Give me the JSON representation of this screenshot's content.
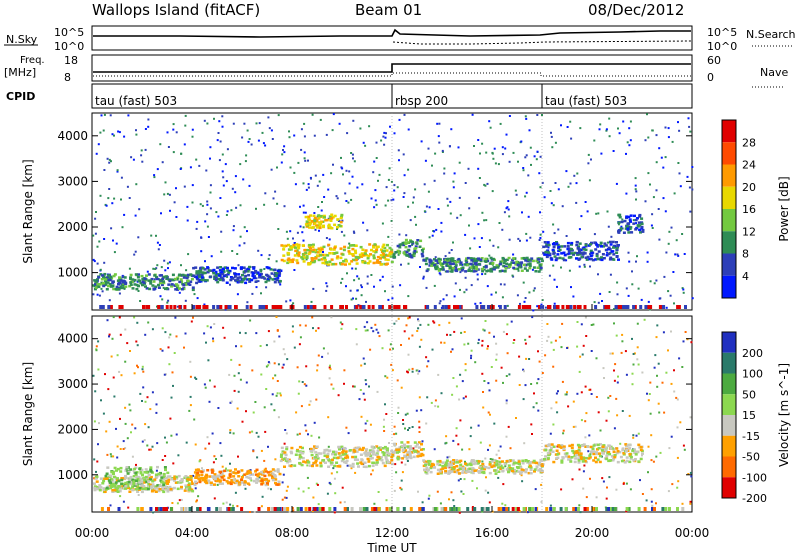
{
  "header": {
    "station": "Wallops Island (fitACF)",
    "beam": "Beam 01",
    "date": "08/Dec/2012"
  },
  "panels": {
    "nsky": {
      "label": "N.Sky",
      "right_label": "N.Search",
      "tick_top": "10^5",
      "tick_bottom": "10^0"
    },
    "freq": {
      "label_line1": "Freq.",
      "label_line2": "[MHz]",
      "tick_top": "18",
      "tick_bottom": "8",
      "right_label": "Nave",
      "right_tick_top": "60",
      "right_tick_bottom": "0"
    },
    "cpid": {
      "label": "CPID",
      "segments": [
        {
          "start": 0,
          "end": 12,
          "label": "tau (fast) 503"
        },
        {
          "start": 12,
          "end": 18,
          "label": "rbsp 200"
        },
        {
          "start": 18,
          "end": 24,
          "label": "tau (fast) 503"
        }
      ]
    }
  },
  "chart_data": [
    {
      "type": "heatmap",
      "name": "Power",
      "ylabel": "Slant Range [km]",
      "yticks": [
        1000,
        2000,
        3000,
        4000
      ],
      "ylim": [
        180,
        4500
      ],
      "xlim": [
        0,
        24
      ],
      "colorbar": {
        "label": "Power [dB]",
        "ticks": [
          "28",
          "24",
          "20",
          "16",
          "12",
          "8",
          "4"
        ],
        "colors": [
          "#e00000",
          "#ff4a00",
          "#ff9a00",
          "#e8d800",
          "#73c940",
          "#2e8c55",
          "#2d3fb8",
          "#0018ff"
        ]
      },
      "bands": [
        {
          "t0": 0.0,
          "t1": 4.0,
          "r0": 650,
          "r1": 1000,
          "level": 5
        },
        {
          "t0": 4.0,
          "t1": 7.5,
          "r0": 800,
          "r1": 1150,
          "level": 6
        },
        {
          "t0": 7.5,
          "t1": 12.0,
          "r0": 1200,
          "r1": 1650,
          "level": 3
        },
        {
          "t0": 8.5,
          "t1": 10.0,
          "r0": 2000,
          "r1": 2300,
          "level": 3
        },
        {
          "t0": 12.0,
          "t1": 13.2,
          "r0": 1350,
          "r1": 1750,
          "level": 5
        },
        {
          "t0": 13.2,
          "t1": 18.0,
          "r0": 1050,
          "r1": 1350,
          "level": 5
        },
        {
          "t0": 18.0,
          "t1": 21.0,
          "r0": 1300,
          "r1": 1700,
          "level": 6
        },
        {
          "t0": 21.0,
          "t1": 22.0,
          "r0": 1900,
          "r1": 2300,
          "level": 6
        }
      ]
    },
    {
      "type": "heatmap",
      "name": "Velocity",
      "ylabel": "Slant Range [km]",
      "yticks": [
        1000,
        2000,
        3000,
        4000
      ],
      "ylim": [
        180,
        4500
      ],
      "xlim": [
        0,
        24
      ],
      "xlabel": "Time UT",
      "xticks": [
        "00:00",
        "04:00",
        "08:00",
        "12:00",
        "16:00",
        "20:00",
        "00:00"
      ],
      "xtick_hours": [
        0,
        4,
        8,
        12,
        16,
        20,
        24
      ],
      "colorbar": {
        "label": "Velocity [m s^-1]",
        "ticks": [
          "200",
          "100",
          "50",
          "15",
          "-15",
          "-50",
          "-100",
          "-200"
        ],
        "colors": [
          "#2030c0",
          "#2a7a6a",
          "#4caa40",
          "#8cd850",
          "#c8c8c0",
          "#ffa000",
          "#ff6a00",
          "#e00000"
        ]
      },
      "bands": [
        {
          "t0": 0.0,
          "t1": 4.0,
          "r0": 650,
          "r1": 1000,
          "level": 4
        },
        {
          "t0": 0.5,
          "t1": 3.0,
          "r0": 700,
          "r1": 1200,
          "level": 3
        },
        {
          "t0": 4.0,
          "t1": 7.5,
          "r0": 800,
          "r1": 1150,
          "level": 5
        },
        {
          "t0": 7.5,
          "t1": 12.0,
          "r0": 1200,
          "r1": 1650,
          "level": 4
        },
        {
          "t0": 12.0,
          "t1": 13.2,
          "r0": 1350,
          "r1": 1750,
          "level": 4
        },
        {
          "t0": 13.2,
          "t1": 18.0,
          "r0": 1050,
          "r1": 1350,
          "level": 4
        },
        {
          "t0": 18.0,
          "t1": 22.0,
          "r0": 1300,
          "r1": 1700,
          "level": 4
        }
      ]
    }
  ]
}
